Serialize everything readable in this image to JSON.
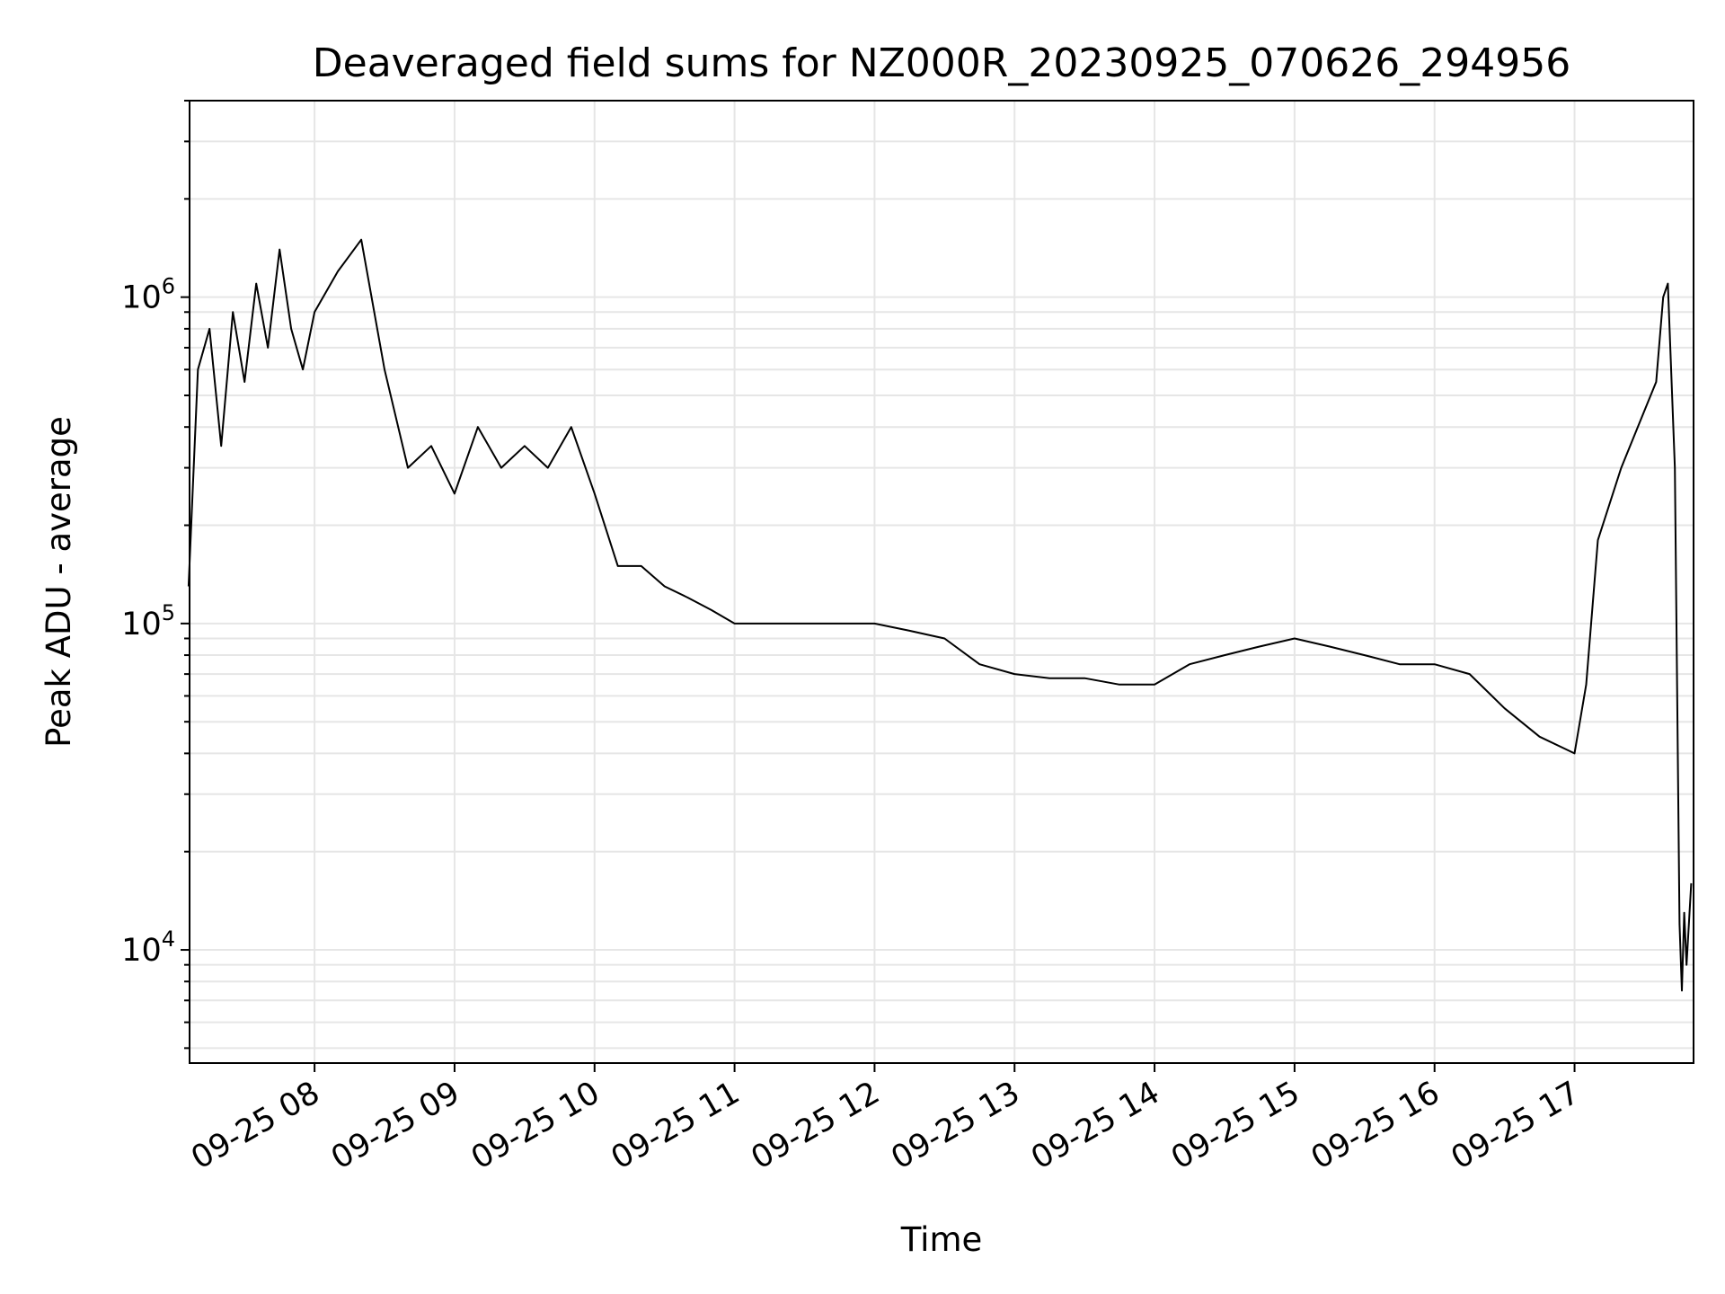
{
  "chart_data": {
    "type": "line",
    "title": "Deaveraged field sums for NZ000R_20230925_070626_294956",
    "xlabel": "Time",
    "ylabel": "Peak ADU - average",
    "xscale": "time",
    "yscale": "log",
    "xlim": [
      "2023-09-25T07:06:26",
      "2023-09-25T17:51:00"
    ],
    "ylim": [
      4500,
      4000000
    ],
    "grid": true,
    "legend": "none",
    "line_color": "#000000",
    "grid_color": "#e6e6e6",
    "x_ticks": [
      {
        "t": "2023-09-25T08:00",
        "label": "09-25 08"
      },
      {
        "t": "2023-09-25T09:00",
        "label": "09-25 09"
      },
      {
        "t": "2023-09-25T10:00",
        "label": "09-25 10"
      },
      {
        "t": "2023-09-25T11:00",
        "label": "09-25 11"
      },
      {
        "t": "2023-09-25T12:00",
        "label": "09-25 12"
      },
      {
        "t": "2023-09-25T13:00",
        "label": "09-25 13"
      },
      {
        "t": "2023-09-25T14:00",
        "label": "09-25 14"
      },
      {
        "t": "2023-09-25T15:00",
        "label": "09-25 15"
      },
      {
        "t": "2023-09-25T16:00",
        "label": "09-25 16"
      },
      {
        "t": "2023-09-25T17:00",
        "label": "09-25 17"
      }
    ],
    "y_ticks": [
      {
        "value": 10000,
        "base": "10",
        "exp": "4"
      },
      {
        "value": 100000,
        "base": "10",
        "exp": "5"
      },
      {
        "value": 1000000,
        "base": "10",
        "exp": "6"
      }
    ],
    "series": [
      {
        "values": [
          [
            "2023-09-25T07:06",
            130000
          ],
          [
            "2023-09-25T07:10",
            600000
          ],
          [
            "2023-09-25T07:15",
            800000
          ],
          [
            "2023-09-25T07:20",
            350000
          ],
          [
            "2023-09-25T07:25",
            900000
          ],
          [
            "2023-09-25T07:30",
            550000
          ],
          [
            "2023-09-25T07:35",
            1100000
          ],
          [
            "2023-09-25T07:40",
            700000
          ],
          [
            "2023-09-25T07:45",
            1400000
          ],
          [
            "2023-09-25T07:50",
            800000
          ],
          [
            "2023-09-25T07:55",
            600000
          ],
          [
            "2023-09-25T08:00",
            900000
          ],
          [
            "2023-09-25T08:10",
            1200000
          ],
          [
            "2023-09-25T08:20",
            1500000
          ],
          [
            "2023-09-25T08:30",
            600000
          ],
          [
            "2023-09-25T08:40",
            300000
          ],
          [
            "2023-09-25T08:50",
            350000
          ],
          [
            "2023-09-25T09:00",
            250000
          ],
          [
            "2023-09-25T09:10",
            400000
          ],
          [
            "2023-09-25T09:20",
            300000
          ],
          [
            "2023-09-25T09:30",
            350000
          ],
          [
            "2023-09-25T09:40",
            300000
          ],
          [
            "2023-09-25T09:50",
            400000
          ],
          [
            "2023-09-25T10:00",
            250000
          ],
          [
            "2023-09-25T10:10",
            150000
          ],
          [
            "2023-09-25T10:20",
            150000
          ],
          [
            "2023-09-25T10:30",
            130000
          ],
          [
            "2023-09-25T10:40",
            120000
          ],
          [
            "2023-09-25T10:50",
            110000
          ],
          [
            "2023-09-25T11:00",
            100000
          ],
          [
            "2023-09-25T11:15",
            100000
          ],
          [
            "2023-09-25T11:30",
            100000
          ],
          [
            "2023-09-25T11:45",
            100000
          ],
          [
            "2023-09-25T12:00",
            100000
          ],
          [
            "2023-09-25T12:15",
            95000
          ],
          [
            "2023-09-25T12:30",
            90000
          ],
          [
            "2023-09-25T12:45",
            75000
          ],
          [
            "2023-09-25T13:00",
            70000
          ],
          [
            "2023-09-25T13:15",
            68000
          ],
          [
            "2023-09-25T13:30",
            68000
          ],
          [
            "2023-09-25T13:45",
            65000
          ],
          [
            "2023-09-25T14:00",
            65000
          ],
          [
            "2023-09-25T14:15",
            75000
          ],
          [
            "2023-09-25T14:30",
            80000
          ],
          [
            "2023-09-25T14:45",
            85000
          ],
          [
            "2023-09-25T15:00",
            90000
          ],
          [
            "2023-09-25T15:15",
            85000
          ],
          [
            "2023-09-25T15:30",
            80000
          ],
          [
            "2023-09-25T15:45",
            75000
          ],
          [
            "2023-09-25T16:00",
            75000
          ],
          [
            "2023-09-25T16:15",
            70000
          ],
          [
            "2023-09-25T16:30",
            55000
          ],
          [
            "2023-09-25T16:45",
            45000
          ],
          [
            "2023-09-25T17:00",
            40000
          ],
          [
            "2023-09-25T17:05",
            65000
          ],
          [
            "2023-09-25T17:10",
            180000
          ],
          [
            "2023-09-25T17:20",
            300000
          ],
          [
            "2023-09-25T17:30",
            450000
          ],
          [
            "2023-09-25T17:35",
            550000
          ],
          [
            "2023-09-25T17:38",
            1000000
          ],
          [
            "2023-09-25T17:40",
            1100000
          ],
          [
            "2023-09-25T17:43",
            300000
          ],
          [
            "2023-09-25T17:45",
            12000
          ],
          [
            "2023-09-25T17:46",
            7500
          ],
          [
            "2023-09-25T17:47",
            13000
          ],
          [
            "2023-09-25T17:48",
            9000
          ],
          [
            "2023-09-25T17:50",
            16000
          ]
        ]
      }
    ]
  }
}
